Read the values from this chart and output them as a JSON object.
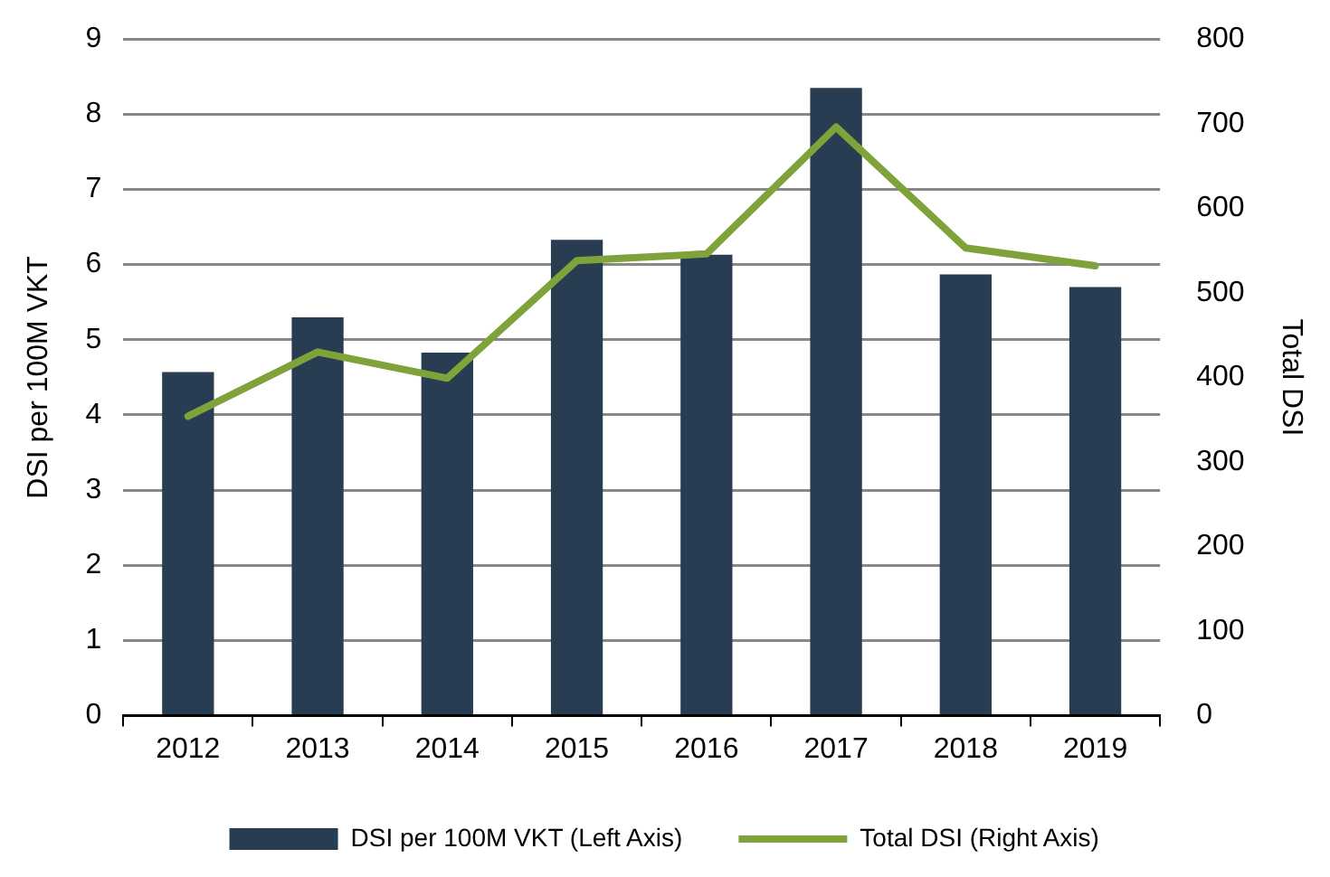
{
  "chart_data": {
    "type": "bar",
    "ylabel": "DSI per 100M VKT",
    "y2label": "Total DSI",
    "categories": [
      "2012",
      "2013",
      "2014",
      "2015",
      "2016",
      "2017",
      "2018",
      "2019"
    ],
    "series": [
      {
        "name": "DSI per 100M VKT (Left Axis)",
        "color": "#283d52",
        "values": [
          4.57,
          5.3,
          4.83,
          6.33,
          6.13,
          8.35,
          5.87,
          5.7
        ]
      },
      {
        "name": "Total DSI (Right Axis)",
        "type": "line",
        "axis": "y2",
        "color": "#7fa33a",
        "values": [
          354,
          430,
          399,
          538,
          546,
          696,
          553,
          532
        ]
      }
    ],
    "ylim": [
      0,
      9
    ],
    "yticks": [
      0,
      1,
      2,
      3,
      4,
      5,
      6,
      7,
      8,
      9
    ],
    "y2lim": [
      0,
      800
    ],
    "y2ticks": [
      0,
      100,
      200,
      300,
      400,
      500,
      600,
      700,
      800
    ],
    "grid": "y",
    "legend": "bottom",
    "marker": "none"
  }
}
